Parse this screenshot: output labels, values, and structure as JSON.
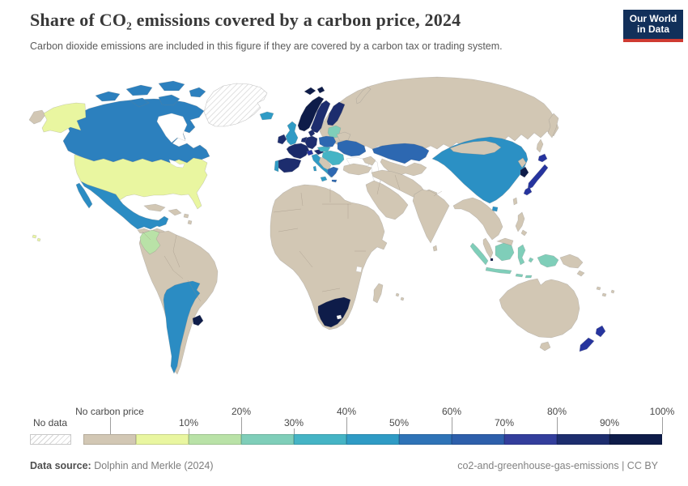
{
  "header": {
    "title": "Share of CO₂ emissions covered by a carbon price, 2024",
    "subtitle": "Carbon dioxide emissions are included in this figure if they are covered by a carbon tax or trading system.",
    "logo": {
      "line1": "Our World",
      "line2": "in Data",
      "bg": "#12305a",
      "accent": "#cf3b32"
    }
  },
  "legend": {
    "no_data_label": "No data",
    "bins": [
      {
        "label": "No carbon price",
        "color": "#d2c7b4",
        "row": "top"
      },
      {
        "label": "10%",
        "color": "#e9f6a0",
        "row": "bottom"
      },
      {
        "label": "20%",
        "color": "#b9e2a7",
        "row": "top"
      },
      {
        "label": "30%",
        "color": "#7fceb9",
        "row": "bottom"
      },
      {
        "label": "40%",
        "color": "#45b4c5",
        "row": "top"
      },
      {
        "label": "50%",
        "color": "#2f9bc5",
        "row": "bottom"
      },
      {
        "label": "60%",
        "color": "#2e73b7",
        "row": "top"
      },
      {
        "label": "70%",
        "color": "#2d5fab",
        "row": "bottom"
      },
      {
        "label": "80%",
        "color": "#333e9c",
        "row": "top"
      },
      {
        "label": "90%",
        "color": "#1d2d6e",
        "row": "bottom"
      },
      {
        "label": "100%",
        "color": "#0e1c49",
        "row": "top"
      }
    ]
  },
  "footer": {
    "source_prefix": "Data source:",
    "source": " Dolphin and Merkle (2024)",
    "right": "co2-and-greenhouse-gas-emissions | CC BY"
  },
  "map": {
    "ocean": "#ffffff",
    "colors": {
      "beige": "#d2c7b4",
      "usa": "#e9f6a0",
      "colombia": "#b9e2a7",
      "seafoam": "#7fceb9",
      "teal": "#45b4c5",
      "cyan": "#2f9bc5",
      "china": "#2b90c4",
      "latam": "#2b8cc3",
      "canada": "#2c80be",
      "royal": "#2d68b1",
      "indigo": "#26349e",
      "navy": "#1d2d6e",
      "france": "#1a2a69",
      "darkest": "#0e1c49",
      "no_data": "hatch",
      "water": "#ffffff"
    }
  },
  "chart_data": {
    "type": "choropleth_map",
    "title": "Share of CO₂ emissions covered by a carbon price, 2024",
    "unit": "%",
    "legend_position": "bottom",
    "bins": [
      "No carbon price",
      "0-10%",
      "10-20%",
      "20-30%",
      "30-40%",
      "40-50%",
      "50-60%",
      "60-70%",
      "70-80%",
      "80-90%",
      "90-100%"
    ],
    "bin_colors": [
      "#d2c7b4",
      "#e9f6a0",
      "#b9e2a7",
      "#7fceb9",
      "#45b4c5",
      "#2f9bc5",
      "#2e73b7",
      "#2d5fab",
      "#333e9c",
      "#1d2d6e",
      "#0e1c49"
    ],
    "no_data": [
      "Greenland"
    ],
    "assignments": {
      "United States": "0-10%",
      "Colombia": "10-20%",
      "Indonesia": "20-30%",
      "Estonia": "20-30%",
      "Latvia": "20-30%",
      "Lithuania": "20-30%",
      "Czechia": "30-40%",
      "Slovakia": "30-40%",
      "Hungary": "30-40%",
      "Romania": "30-40%",
      "Bulgaria": "30-40%",
      "Croatia": "30-40%",
      "China": "40-50%",
      "Mexico": "40-50%",
      "Chile": "40-50%",
      "Argentina": "40-50%",
      "Iceland": "40-50%",
      "United Kingdom": "40-50%",
      "Italy": "40-50%",
      "Portugal": "40-50%",
      "Canada": "50-60%",
      "Poland": "50-60%",
      "Ukraine": "50-60%",
      "Greece": "50-60%",
      "Kazakhstan": "50-60%",
      "Japan": "70-80%",
      "New Zealand": "70-80%",
      "Switzerland": "70-80%",
      "Germany": "80-90%",
      "France": "80-90%",
      "Spain": "80-90%",
      "Sweden": "80-90%",
      "Finland": "80-90%",
      "Denmark": "80-90%",
      "Ireland": "80-90%",
      "Austria": "80-90%",
      "Netherlands": "80-90%",
      "Belgium": "80-90%",
      "Norway": "90-100%",
      "South Korea": "90-100%",
      "South Africa": "90-100%",
      "Uruguay": "90-100%",
      "Singapore": "90-100%",
      "Luxembourg": "90-100%",
      "Russia": "No carbon price",
      "Brazil": "No carbon price",
      "Australia": "No carbon price",
      "India": "No carbon price",
      "Turkey": "No carbon price",
      "Saudi Arabia": "No carbon price",
      "Iran": "No carbon price",
      "Belarus": "No carbon price",
      "Mongolia": "No carbon price",
      "North Korea": "No carbon price",
      "Taiwan": "No carbon price",
      "Philippines": "No carbon price",
      "Malaysia": "No carbon price",
      "Vietnam": "No carbon price",
      "Thailand": "No carbon price",
      "Myanmar": "No carbon price",
      "Pakistan": "No carbon price",
      "Papua New Guinea": "No carbon price",
      "Madagascar": "No carbon price",
      "Venezuela": "No carbon price",
      "Peru": "No carbon price",
      "Bolivia": "No carbon price",
      "Paraguay": "No carbon price",
      "Ecuador": "No carbon price",
      "Cuba": "No carbon price",
      "Egypt": "No carbon price",
      "Nigeria": "No carbon price",
      "Most of Africa": "No carbon price",
      "Central America": "No carbon price",
      "Central Asia": "No carbon price",
      "Middle East": "No carbon price"
    }
  }
}
